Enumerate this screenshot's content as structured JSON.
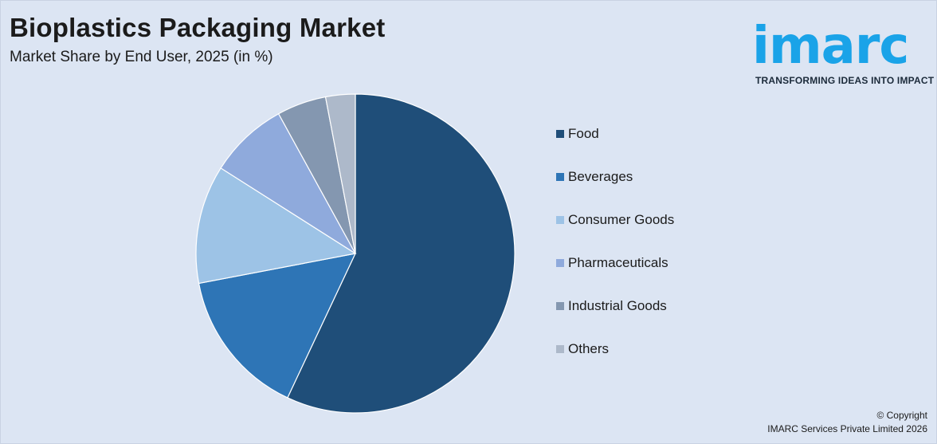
{
  "header": {
    "title": "Bioplastics Packaging Market",
    "subtitle": "Market Share by End User, 2025 (in %)"
  },
  "logo": {
    "wordmark": "imarc",
    "tagline": "TRANSFORMING IDEAS INTO IMPACT",
    "color": "#1aa3e8"
  },
  "chart_data": {
    "type": "pie",
    "title": "Bioplastics Packaging Market",
    "subtitle": "Market Share by End User, 2025 (in %)",
    "legend_position": "right",
    "categories": [
      "Food",
      "Beverages",
      "Consumer Goods",
      "Pharmaceuticals",
      "Industrial Goods",
      "Others"
    ],
    "values": [
      57,
      15,
      12,
      8,
      5,
      3
    ],
    "colors": [
      "#1f4e79",
      "#2e75b6",
      "#9dc3e6",
      "#8faadc",
      "#8497b0",
      "#adb9ca"
    ],
    "start_angle_deg": 0,
    "direction": "clockwise"
  },
  "footer": {
    "copyright_line1": "© Copyright",
    "copyright_line2": "IMARC Services Private Limited 2026"
  }
}
